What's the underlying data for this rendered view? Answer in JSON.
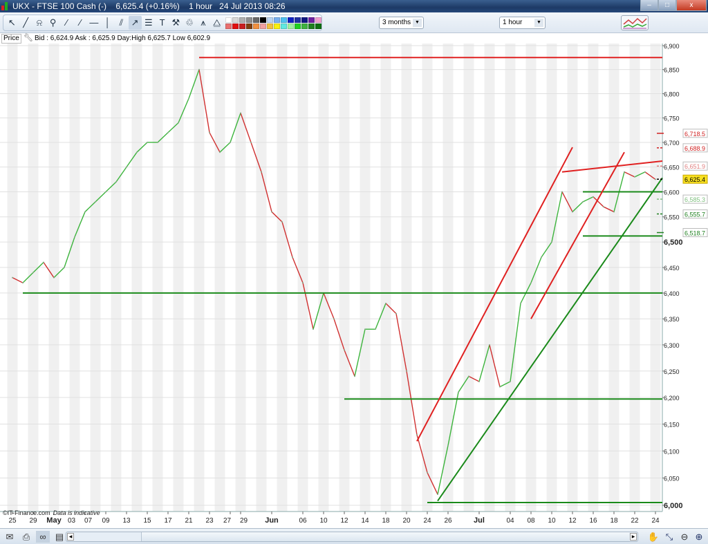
{
  "window": {
    "title": "UKX - FTSE 100 Cash (-)",
    "quote": "6,625.4 (+0.16%)",
    "interval": "1 hour",
    "datetime": "24 Jul 2013 08:26",
    "minimize": "–",
    "restore": "□",
    "close": "x"
  },
  "toolbar": {
    "tools": [
      {
        "name": "pointer-icon",
        "glyph": "↖"
      },
      {
        "name": "ruler-icon",
        "glyph": "╱"
      },
      {
        "name": "alarm-icon",
        "glyph": "⍾"
      },
      {
        "name": "magnifier-icon",
        "glyph": "⚲"
      },
      {
        "name": "line-icon",
        "glyph": "⁄"
      },
      {
        "name": "segment-icon",
        "glyph": "∕"
      },
      {
        "name": "horizontal-line-icon",
        "glyph": "—"
      },
      {
        "name": "vertical-line-icon",
        "glyph": "│"
      },
      {
        "name": "parallel-lines-icon",
        "glyph": "⫽"
      },
      {
        "name": "trend-channel-icon",
        "glyph": "↗"
      },
      {
        "name": "fibonacci-icon",
        "glyph": "☰"
      },
      {
        "name": "text-icon",
        "glyph": "T"
      },
      {
        "name": "tools-icon",
        "glyph": "⚒"
      },
      {
        "name": "trash-icon",
        "glyph": "♲"
      },
      {
        "name": "pattern-icon",
        "glyph": "⩚"
      },
      {
        "name": "triangle-pattern-icon",
        "glyph": "⧋"
      }
    ],
    "palette": [
      "#ffffff",
      "#d8d8d8",
      "#b0b0b0",
      "#909090",
      "#686868",
      "#000000",
      "#bcd4f0",
      "#7ab0ee",
      "#4fc0f0",
      "#1020c0",
      "#2030a0",
      "#101880",
      "#7020a0",
      "#f0a0d0",
      "#e87070",
      "#e01010",
      "#c82020",
      "#804010",
      "#f09040",
      "#f0a0a0",
      "#f0c040",
      "#f8f010",
      "#60e8e0",
      "#a0f0a0",
      "#20d020",
      "#40b040",
      "#208020",
      "#107010"
    ],
    "period": "3 months",
    "interval": "1 hour"
  },
  "infobar": {
    "price_label": "Price",
    "quote_line": "Bid : 6,624.9 Ask : 6,625.9 Day:High 6,625.7 Low 6,602.9"
  },
  "footer": {
    "copyright": "©IT-Finance.com",
    "note": "Data is indicative"
  },
  "chart_data": {
    "type": "line",
    "title": "UKX - FTSE 100 Cash (-)",
    "y_scale": "log",
    "ylim": [
      5985,
      6915
    ],
    "grid": true,
    "up_color": "#3cb43c",
    "down_color": "#d03030",
    "x": [
      "Apr25",
      "Apr26",
      "Apr29",
      "Apr30",
      "May01",
      "May02",
      "May03",
      "May07",
      "May08",
      "May09",
      "May10",
      "May13",
      "May14",
      "May15",
      "May16",
      "May17",
      "May20",
      "May21",
      "May22",
      "May23",
      "May24",
      "May28",
      "May29",
      "May30",
      "May31",
      "Jun03",
      "Jun04",
      "Jun05",
      "Jun06",
      "Jun07",
      "Jun10",
      "Jun11",
      "Jun12",
      "Jun13",
      "Jun14",
      "Jun17",
      "Jun18",
      "Jun19",
      "Jun20",
      "Jun21",
      "Jun24",
      "Jun25",
      "Jun26",
      "Jun27",
      "Jun28",
      "Jul01",
      "Jul02",
      "Jul03",
      "Jul04",
      "Jul05",
      "Jul08",
      "Jul09",
      "Jul10",
      "Jul11",
      "Jul12",
      "Jul15",
      "Jul16",
      "Jul17",
      "Jul18",
      "Jul19",
      "Jul22",
      "Jul23",
      "Jul24"
    ],
    "values": [
      6430,
      6420,
      6440,
      6460,
      6430,
      6450,
      6510,
      6560,
      6580,
      6600,
      6620,
      6650,
      6680,
      6700,
      6700,
      6720,
      6740,
      6790,
      6850,
      6720,
      6680,
      6700,
      6760,
      6700,
      6640,
      6560,
      6540,
      6470,
      6420,
      6330,
      6400,
      6350,
      6290,
      6240,
      6330,
      6330,
      6380,
      6360,
      6250,
      6130,
      6060,
      6020,
      6110,
      6210,
      6240,
      6230,
      6300,
      6220,
      6230,
      6380,
      6420,
      6470,
      6500,
      6600,
      6560,
      6580,
      6590,
      6570,
      6560,
      6640,
      6630,
      6640,
      6625
    ],
    "x_ticks": [
      {
        "label": "25",
        "at": "Apr25"
      },
      {
        "label": "29",
        "at": "Apr29"
      },
      {
        "label": "May",
        "at": "May01",
        "bold": true
      },
      {
        "label": "03",
        "at": "May03"
      },
      {
        "label": "07",
        "at": "May07"
      },
      {
        "label": "09",
        "at": "May09"
      },
      {
        "label": "13",
        "at": "May13"
      },
      {
        "label": "15",
        "at": "May15"
      },
      {
        "label": "17",
        "at": "May17"
      },
      {
        "label": "21",
        "at": "May21"
      },
      {
        "label": "23",
        "at": "May23"
      },
      {
        "label": "27",
        "at": "May28"
      },
      {
        "label": "29",
        "at": "May29"
      },
      {
        "label": "Jun",
        "at": "Jun03",
        "bold": true
      },
      {
        "label": "06",
        "at": "Jun06"
      },
      {
        "label": "10",
        "at": "Jun10"
      },
      {
        "label": "12",
        "at": "Jun12"
      },
      {
        "label": "14",
        "at": "Jun14"
      },
      {
        "label": "18",
        "at": "Jun18"
      },
      {
        "label": "20",
        "at": "Jun20"
      },
      {
        "label": "24",
        "at": "Jun24"
      },
      {
        "label": "26",
        "at": "Jun26"
      },
      {
        "label": "Jul",
        "at": "Jul01",
        "bold": true
      },
      {
        "label": "04",
        "at": "Jul04"
      },
      {
        "label": "08",
        "at": "Jul08"
      },
      {
        "label": "10",
        "at": "Jul10"
      },
      {
        "label": "12",
        "at": "Jul12"
      },
      {
        "label": "16",
        "at": "Jul16"
      },
      {
        "label": "18",
        "at": "Jul18"
      },
      {
        "label": "22",
        "at": "Jul22"
      },
      {
        "label": "24",
        "at": "Jul24"
      }
    ],
    "y_ticks": [
      {
        "v": 6000,
        "label": "6,000",
        "bold": true
      },
      {
        "v": 6050,
        "label": "6,050"
      },
      {
        "v": 6100,
        "label": "6,100"
      },
      {
        "v": 6150,
        "label": "6,150"
      },
      {
        "v": 6200,
        "label": "6,200"
      },
      {
        "v": 6250,
        "label": "6,250"
      },
      {
        "v": 6300,
        "label": "6,300"
      },
      {
        "v": 6350,
        "label": "6,350"
      },
      {
        "v": 6400,
        "label": "6,400"
      },
      {
        "v": 6450,
        "label": "6,450"
      },
      {
        "v": 6500,
        "label": "6,500",
        "bold": true
      },
      {
        "v": 6550,
        "label": "6,550"
      },
      {
        "v": 6600,
        "label": "6,600"
      },
      {
        "v": 6650,
        "label": "6,650"
      },
      {
        "v": 6700,
        "label": "6,700"
      },
      {
        "v": 6750,
        "label": "6,750"
      },
      {
        "v": 6800,
        "label": "6,800"
      },
      {
        "v": 6850,
        "label": "6,850"
      },
      {
        "v": 6900,
        "label": "6,900"
      }
    ],
    "trend_lines": [
      {
        "name": "resistance-6875",
        "color": "#e02020",
        "from": [
          "May22",
          6875
        ],
        "to": [
          "end",
          6875
        ]
      },
      {
        "name": "support-6400",
        "color": "#1a8a1a",
        "from": [
          "Apr26",
          6400
        ],
        "to": [
          "end",
          6400
        ]
      },
      {
        "name": "support-6197",
        "color": "#1a8a1a",
        "from": [
          "Jun12",
          6197
        ],
        "to": [
          "end",
          6197
        ]
      },
      {
        "name": "support-6005",
        "color": "#1a8a1a",
        "from": [
          "Jun24",
          6005
        ],
        "to": [
          "end",
          6005
        ]
      },
      {
        "name": "support-6600",
        "color": "#1a8a1a",
        "from": [
          "Jul15",
          6600
        ],
        "to": [
          "end",
          6600
        ]
      },
      {
        "name": "support-6512",
        "color": "#1a8a1a",
        "from": [
          "Jul15",
          6512
        ],
        "to": [
          "end",
          6512
        ]
      },
      {
        "name": "red-channel-lower",
        "color": "#e02020",
        "from": [
          "Jun21",
          6118
        ],
        "to": [
          "Jul12",
          6690
        ]
      },
      {
        "name": "red-channel-upper",
        "color": "#e02020",
        "from": [
          "Jul08",
          6350
        ],
        "to": [
          "Jul19",
          6680
        ]
      },
      {
        "name": "red-top-line",
        "color": "#e02020",
        "from": [
          "Jul11",
          6640
        ],
        "to": [
          "end",
          6662
        ]
      },
      {
        "name": "green-uptrend",
        "color": "#1a8a1a",
        "from": [
          "Jun25",
          6008
        ],
        "to": [
          "end",
          6628
        ]
      }
    ],
    "price_levels": [
      {
        "label": "6,718.5",
        "v": 6718.5,
        "kind": "resistance",
        "color": "#d02020",
        "dash": false
      },
      {
        "label": "6,688.9",
        "v": 6688.9,
        "kind": "resistance",
        "color": "#d02020",
        "dash": true
      },
      {
        "label": "6,651.9",
        "v": 6651.9,
        "kind": "resistance",
        "color": "#e08080",
        "dash": true
      },
      {
        "label": "6,625.4",
        "v": 6625.4,
        "kind": "current",
        "color": "#000000",
        "dash": true
      },
      {
        "label": "6,585.3",
        "v": 6585.3,
        "kind": "support",
        "color": "#80c080",
        "dash": true
      },
      {
        "label": "6,555.7",
        "v": 6555.7,
        "kind": "support",
        "color": "#208020",
        "dash": true
      },
      {
        "label": "6,518.7",
        "v": 6518.7,
        "kind": "support",
        "color": "#208020",
        "dash": false
      }
    ]
  }
}
